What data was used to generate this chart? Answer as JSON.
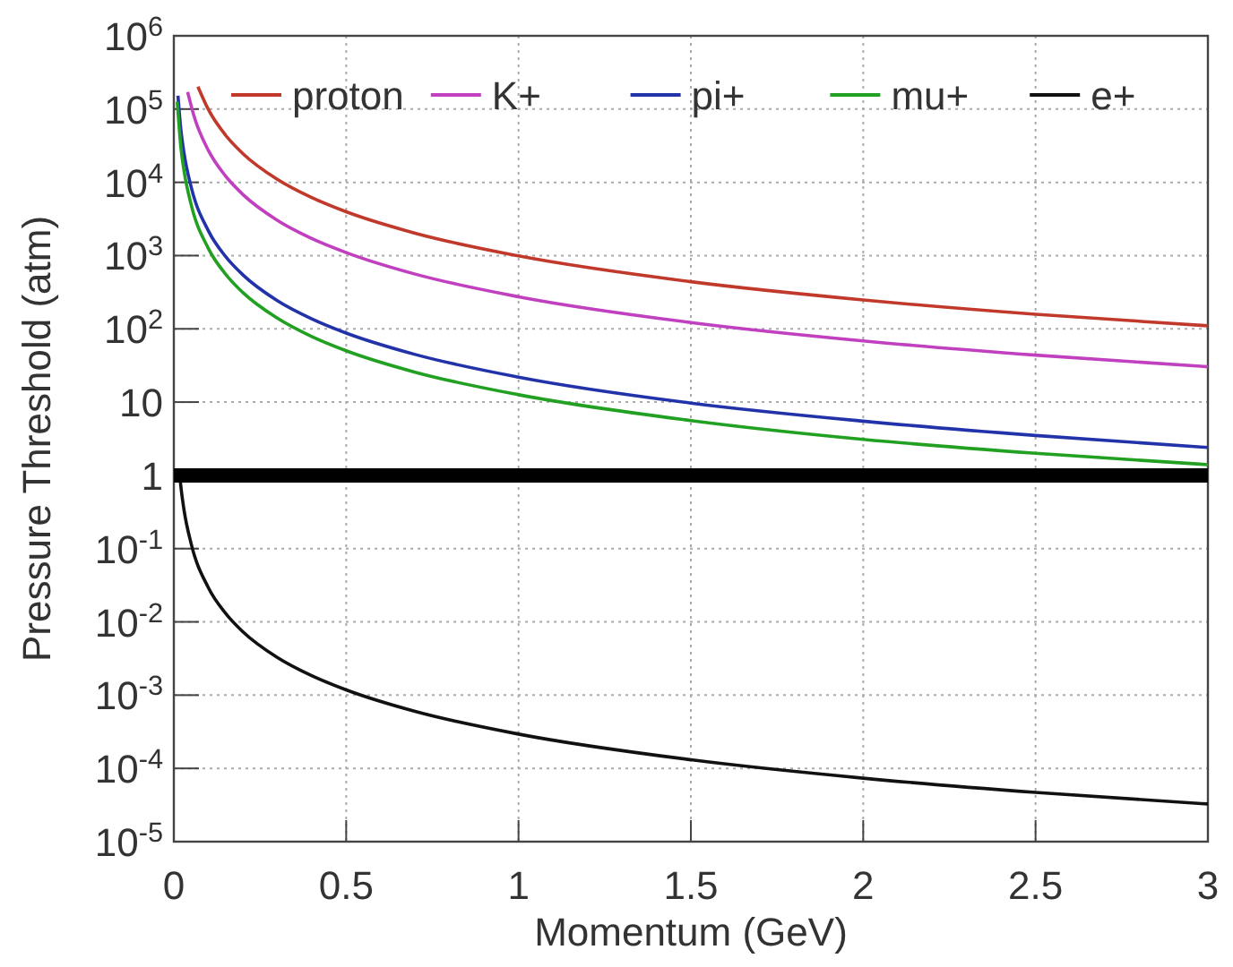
{
  "chart_data": {
    "type": "line",
    "xlabel": "Momentum (GeV)",
    "ylabel": "Pressure Threshold (atm)",
    "log": "y",
    "grid": true,
    "legend": "top",
    "line_style": "solid",
    "marker": "none",
    "xlim": [
      0,
      3
    ],
    "xticks": [
      0,
      0.5,
      1,
      1.5,
      2,
      2.5,
      3
    ],
    "ylim": [
      1e-05,
      1000000
    ],
    "yticks": [
      {
        "value": 1e-05,
        "label": "10$^{-5}$"
      },
      {
        "value": 0.0001,
        "label": "10$^{-4}$"
      },
      {
        "value": 0.001,
        "label": "10$^{-3}$"
      },
      {
        "value": 0.01,
        "label": "10$^{-2}$"
      },
      {
        "value": 0.1,
        "label": "10$^{-1}$"
      },
      1,
      10,
      {
        "value": 100,
        "label": "10$^{2}$"
      },
      {
        "value": 1000,
        "label": "10$^{3}$"
      },
      {
        "value": 10000,
        "label": "10$^{4}$"
      },
      {
        "value": 100000,
        "label": "10$^{5}$"
      },
      {
        "value": 1000000,
        "label": "10$^{6}$"
      }
    ],
    "ref_lines": [
      {
        "axis": "y",
        "value": 1,
        "color": "#000000"
      }
    ],
    "series": [
      {
        "name": "proton",
        "color": "#c0392b",
        "x": [
          0.07,
          0.1,
          0.15,
          0.2,
          0.3,
          0.4,
          0.5,
          0.7,
          1,
          1.5,
          2,
          2.5,
          3
        ],
        "values": [
          202000,
          99000,
          44000,
          24750,
          11000,
          6190,
          3960,
          2020,
          990,
          440,
          248,
          158,
          110
        ]
      },
      {
        "name": "K+",
        "color": "#c040c0",
        "x": [
          0.04,
          0.06,
          0.1,
          0.15,
          0.2,
          0.3,
          0.4,
          0.5,
          0.7,
          1,
          1.5,
          2,
          2.5,
          3
        ],
        "values": [
          171000,
          76100,
          27400,
          12200,
          6850,
          3040,
          1710,
          1100,
          559,
          274,
          122,
          68.5,
          43.8,
          30.4
        ]
      },
      {
        "name": "pi+",
        "color": "#2233aa",
        "x": [
          0.012,
          0.02,
          0.03,
          0.05,
          0.1,
          0.15,
          0.2,
          0.3,
          0.4,
          0.5,
          0.7,
          1,
          1.5,
          2,
          2.5,
          3
        ],
        "values": [
          152000,
          54800,
          24300,
          8760,
          2190,
          973,
          548,
          243,
          137,
          87.6,
          44.7,
          21.9,
          9.7,
          5.5,
          3.5,
          2.4
        ]
      },
      {
        "name": "mu+",
        "color": "#22a022",
        "x": [
          0.01,
          0.02,
          0.03,
          0.05,
          0.1,
          0.15,
          0.2,
          0.3,
          0.4,
          0.5,
          0.7,
          1,
          1.5,
          2,
          2.5,
          3
        ],
        "values": [
          125600,
          31400,
          13960,
          5020,
          1256,
          558,
          314,
          140,
          78.5,
          50.2,
          25.6,
          12.6,
          5.6,
          3.1,
          2.0,
          1.4
        ]
      },
      {
        "name": "e+",
        "color": "#111111",
        "x": [
          0.017,
          0.02,
          0.03,
          0.05,
          0.1,
          0.15,
          0.2,
          0.3,
          0.4,
          0.5,
          0.7,
          1,
          1.5,
          2,
          2.5,
          3
        ],
        "values": [
          1.02,
          0.735,
          0.327,
          0.118,
          0.0294,
          0.0131,
          0.00735,
          0.00327,
          0.00184,
          0.00118,
          0.0006,
          0.000294,
          0.000131,
          7.35e-05,
          4.7e-05,
          3.27e-05
        ]
      }
    ]
  }
}
